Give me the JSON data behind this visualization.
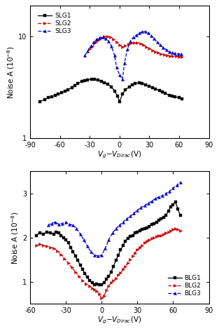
{
  "top": {
    "ylabel": "Noise A (10$^{-8}$)",
    "xlabel": "$V_g-V_{Dirac}$(V)",
    "xlim": [
      -90,
      90
    ],
    "ylim": [
      1,
      20
    ],
    "xticks": [
      -90,
      -60,
      -30,
      0,
      30,
      60,
      90
    ],
    "yticks": [
      1,
      10
    ],
    "SLG1": {
      "x": [
        -80,
        -75,
        -72,
        -68,
        -65,
        -62,
        -58,
        -55,
        -52,
        -48,
        -45,
        -42,
        -38,
        -35,
        -32,
        -28,
        -25,
        -22,
        -18,
        -15,
        -12,
        -8,
        -5,
        -2,
        0,
        3,
        6,
        10,
        13,
        16,
        20,
        23,
        26,
        30,
        33,
        36,
        40,
        43,
        46,
        50,
        53,
        56,
        60,
        63
      ],
      "y": [
        2.3,
        2.4,
        2.5,
        2.55,
        2.65,
        2.7,
        2.8,
        2.9,
        3.0,
        3.15,
        3.3,
        3.45,
        3.6,
        3.7,
        3.75,
        3.8,
        3.78,
        3.72,
        3.6,
        3.5,
        3.4,
        3.2,
        2.9,
        2.6,
        2.3,
        2.7,
        3.0,
        3.2,
        3.35,
        3.45,
        3.5,
        3.45,
        3.35,
        3.25,
        3.15,
        3.05,
        2.95,
        2.85,
        2.75,
        2.65,
        2.6,
        2.55,
        2.5,
        2.45
      ],
      "color": "#000000",
      "linestyle": "-",
      "marker": "s",
      "markersize": 2.5
    },
    "SLG2": {
      "x": [
        -30,
        -27,
        -24,
        -21,
        -18,
        -15,
        -12,
        -9,
        -6,
        -3,
        0,
        3,
        6,
        9,
        12,
        15,
        18,
        21,
        24,
        27,
        30,
        33,
        36,
        39,
        42,
        45,
        48,
        51,
        54,
        57,
        60,
        63
      ],
      "y": [
        7.5,
        8.0,
        8.8,
        9.3,
        9.7,
        10.0,
        10.0,
        9.8,
        9.4,
        8.8,
        8.2,
        7.9,
        8.1,
        8.4,
        8.6,
        8.7,
        8.7,
        8.5,
        8.2,
        7.9,
        7.6,
        7.3,
        7.1,
        6.9,
        6.75,
        6.6,
        6.5,
        6.45,
        6.4,
        6.38,
        6.35,
        6.3
      ],
      "color": "#cc0000",
      "linestyle": "--",
      "marker": ">",
      "markersize": 3
    },
    "SLG3": {
      "x": [
        -35,
        -32,
        -29,
        -26,
        -23,
        -20,
        -17,
        -14,
        -11,
        -8,
        -5,
        -3,
        0,
        3,
        5,
        8,
        11,
        14,
        17,
        20,
        23,
        26,
        29,
        32,
        35,
        38,
        41,
        44,
        47,
        50,
        53,
        56,
        59,
        62
      ],
      "y": [
        6.5,
        7.2,
        8.0,
        8.8,
        9.4,
        9.7,
        9.8,
        9.5,
        9.0,
        8.0,
        6.5,
        5.0,
        4.2,
        3.8,
        5.5,
        7.5,
        9.0,
        9.8,
        10.3,
        10.8,
        11.1,
        11.2,
        10.8,
        10.2,
        9.5,
        8.8,
        8.2,
        7.8,
        7.4,
        7.1,
        6.9,
        6.8,
        6.75,
        6.7
      ],
      "color": "#0000cc",
      "linestyle": "--",
      "marker": "^",
      "markersize": 3
    }
  },
  "bottom": {
    "ylabel": "Noise A (10$^{-8}$)",
    "xlabel": "$V_g-V_{Dirac}$(V)",
    "xlim": [
      -60,
      90
    ],
    "ylim": [
      0.5,
      3.5
    ],
    "xticks": [
      -60,
      -30,
      0,
      30,
      60,
      90
    ],
    "yticks": [
      1,
      2,
      3
    ],
    "BLG1": {
      "x": [
        -55,
        -52,
        -49,
        -46,
        -43,
        -40,
        -38,
        -36,
        -34,
        -32,
        -30,
        -28,
        -26,
        -24,
        -22,
        -20,
        -18,
        -16,
        -14,
        -12,
        -10,
        -8,
        -6,
        -4,
        -2,
        0,
        2,
        4,
        6,
        8,
        10,
        12,
        14,
        16,
        18,
        20,
        22,
        24,
        26,
        28,
        30,
        32,
        34,
        36,
        38,
        40,
        42,
        44,
        46,
        48,
        50,
        52,
        54,
        56,
        58,
        60,
        62,
        64,
        66
      ],
      "y": [
        2.05,
        2.1,
        2.08,
        2.12,
        2.1,
        2.08,
        2.12,
        2.1,
        2.05,
        2.0,
        1.95,
        1.88,
        1.78,
        1.68,
        1.58,
        1.48,
        1.38,
        1.28,
        1.18,
        1.1,
        1.02,
        0.97,
        0.93,
        0.95,
        0.93,
        0.93,
        0.97,
        1.05,
        1.12,
        1.22,
        1.35,
        1.48,
        1.6,
        1.72,
        1.82,
        1.92,
        1.98,
        2.02,
        2.05,
        2.1,
        2.12,
        2.15,
        2.18,
        2.2,
        2.22,
        2.25,
        2.3,
        2.32,
        2.35,
        2.4,
        2.42,
        2.45,
        2.5,
        2.6,
        2.7,
        2.75,
        2.8,
        2.65,
        2.5
      ],
      "color": "#000000",
      "linestyle": "-",
      "marker": "s",
      "markersize": 2.5
    },
    "BLG2": {
      "x": [
        -55,
        -52,
        -49,
        -46,
        -43,
        -40,
        -37,
        -34,
        -31,
        -28,
        -25,
        -22,
        -19,
        -16,
        -13,
        -10,
        -8,
        -6,
        -4,
        -2,
        0,
        2,
        4,
        6,
        8,
        10,
        12,
        14,
        16,
        18,
        20,
        22,
        24,
        26,
        28,
        30,
        32,
        34,
        36,
        38,
        40,
        42,
        44,
        46,
        48,
        50,
        52,
        54,
        56,
        58,
        60,
        62,
        64,
        66
      ],
      "y": [
        1.82,
        1.85,
        1.82,
        1.8,
        1.78,
        1.75,
        1.7,
        1.62,
        1.52,
        1.42,
        1.32,
        1.22,
        1.12,
        1.02,
        0.95,
        0.9,
        0.85,
        0.82,
        0.78,
        0.72,
        0.62,
        0.68,
        0.8,
        0.9,
        0.98,
        1.02,
        1.08,
        1.15,
        1.2,
        1.28,
        1.35,
        1.42,
        1.5,
        1.58,
        1.65,
        1.72,
        1.78,
        1.82,
        1.88,
        1.92,
        1.95,
        1.98,
        2.0,
        2.02,
        2.05,
        2.05,
        2.08,
        2.1,
        2.12,
        2.15,
        2.18,
        2.2,
        2.18,
        2.15
      ],
      "color": "#cc0000",
      "linestyle": "--",
      "marker": ">",
      "markersize": 3
    },
    "BLG3": {
      "x": [
        -45,
        -42,
        -39,
        -36,
        -33,
        -30,
        -27,
        -24,
        -21,
        -18,
        -15,
        -12,
        -9,
        -6,
        -3,
        0,
        3,
        6,
        9,
        12,
        15,
        18,
        21,
        24,
        27,
        30,
        33,
        36,
        39,
        42,
        45,
        48,
        51,
        54,
        57,
        60,
        63,
        66
      ],
      "y": [
        2.28,
        2.32,
        2.35,
        2.3,
        2.32,
        2.35,
        2.3,
        2.28,
        2.2,
        2.08,
        1.95,
        1.8,
        1.68,
        1.6,
        1.58,
        1.6,
        1.75,
        1.95,
        2.1,
        2.2,
        2.28,
        2.35,
        2.42,
        2.48,
        2.55,
        2.62,
        2.68,
        2.72,
        2.78,
        2.82,
        2.88,
        2.92,
        2.95,
        3.0,
        3.05,
        3.12,
        3.18,
        3.25
      ],
      "color": "#0000cc",
      "linestyle": "--",
      "marker": "^",
      "markersize": 3
    }
  }
}
